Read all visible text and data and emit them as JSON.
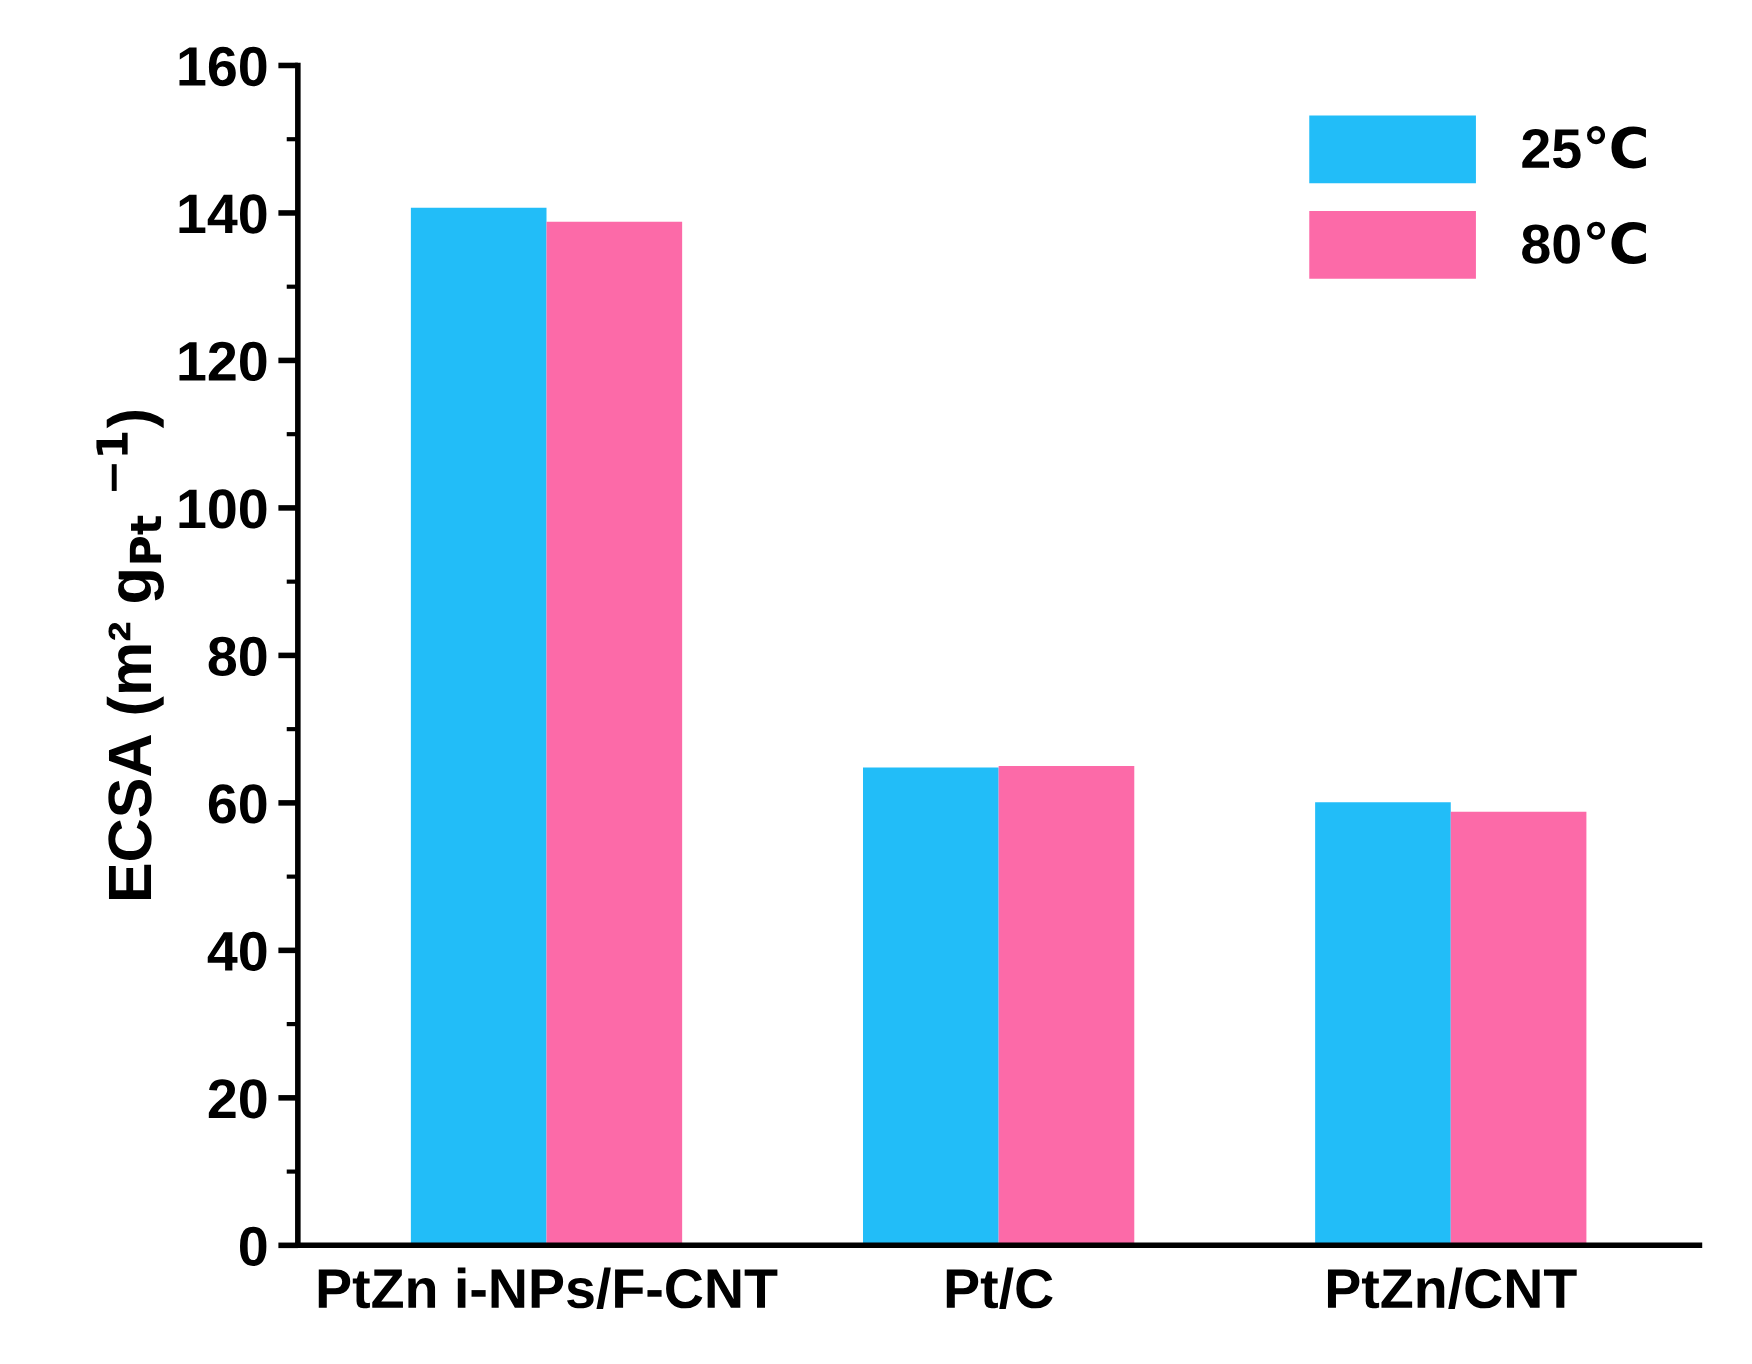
{
  "chart_data": {
    "type": "bar",
    "ylabel": "ECSA (m² g$_{Pt}$ $^{−1}$)",
    "categories": [
      "PtZn i-NPs/F-CNT",
      "Pt/C",
      "PtZn/CNT"
    ],
    "series": [
      {
        "name": "25℃",
        "color": "#22bdf8",
        "values": [
          140.7,
          64.8,
          60.1
        ]
      },
      {
        "name": "80℃",
        "color": "#fc6aa8",
        "values": [
          138.8,
          65.0,
          58.8
        ]
      }
    ],
    "ylim": [
      0,
      160
    ],
    "yticks": [
      0,
      20,
      40,
      60,
      80,
      100,
      120,
      140,
      160
    ],
    "grid": false,
    "legend": "top right"
  }
}
